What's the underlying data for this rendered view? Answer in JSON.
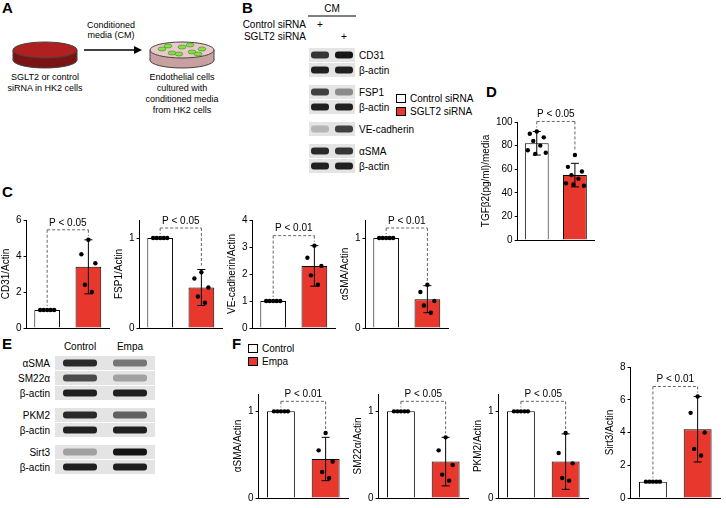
{
  "panel_labels": [
    "A",
    "B",
    "C",
    "D",
    "E",
    "F"
  ],
  "schematic": {
    "arrow_label": [
      "Conditioned",
      "media (CM)"
    ],
    "left_caption": [
      "SGLT2 or control",
      "siRNA in HK2 cells"
    ],
    "right_caption": [
      "Endothelial cells",
      "cultured with",
      "conditioned media",
      "from HK2 cells"
    ]
  },
  "blots": {
    "B": {
      "header": "CM",
      "conditions": [
        {
          "label": "Control siRNA",
          "marks": [
            "+",
            null
          ]
        },
        {
          "label": "SGLT2 siRNA",
          "marks": [
            null,
            "+"
          ]
        }
      ],
      "groups": [
        [
          {
            "label": "CD31",
            "signal": [
              0.8,
              0.95
            ]
          },
          {
            "label": "β-actin",
            "signal": [
              0.9,
              0.9
            ]
          }
        ],
        [
          {
            "label": "FSP1",
            "signal": [
              0.75,
              0.4
            ]
          },
          {
            "label": "β-actin",
            "signal": [
              0.9,
              0.9
            ]
          }
        ],
        [
          {
            "label": "VE-cadherin",
            "signal": [
              0.2,
              0.75
            ]
          }
        ],
        [
          {
            "label": "αSMA",
            "signal": [
              0.85,
              0.8
            ]
          },
          {
            "label": "β-actin",
            "signal": [
              0.9,
              0.9
            ]
          }
        ]
      ]
    },
    "E": {
      "lanes": [
        "Control",
        "Empa"
      ],
      "groups": [
        [
          {
            "label": "αSMA",
            "signal": [
              0.85,
              0.5
            ]
          },
          {
            "label": "SM22α",
            "signal": [
              0.7,
              0.3
            ]
          },
          {
            "label": "β-actin",
            "signal": [
              0.9,
              0.9
            ]
          }
        ],
        [
          {
            "label": "PKM2",
            "signal": [
              0.85,
              0.6
            ]
          },
          {
            "label": "β-actin",
            "signal": [
              0.9,
              0.9
            ]
          }
        ],
        [
          {
            "label": "Sirt3",
            "signal": [
              0.3,
              0.95
            ]
          },
          {
            "label": "β-actin",
            "signal": [
              0.9,
              0.9
            ]
          }
        ]
      ]
    }
  },
  "legends": [
    {
      "entries": [
        {
          "label": "Control siRNA",
          "color": "#ffffff"
        },
        {
          "label": "SGLT2 siRNA",
          "color": "#e8382d"
        }
      ]
    },
    {
      "entries": [
        {
          "label": "Control",
          "color": "#ffffff"
        },
        {
          "label": "Empa",
          "color": "#e8382d"
        }
      ]
    }
  ],
  "chart_data": [
    {
      "type": "bar",
      "y_label": "CD31/Actin",
      "categories": [
        null,
        null
      ],
      "values": [
        1,
        3.4
      ],
      "errors": [
        0,
        1.5
      ],
      "points": [
        [
          1,
          1,
          1,
          1,
          1
        ],
        [
          4.9,
          4.1,
          3.6,
          2.4,
          2.0
        ]
      ],
      "colors": [
        "#ffffff",
        "#e8382d"
      ],
      "ylim": [
        0,
        6
      ],
      "yticks": [
        0,
        2,
        4,
        6
      ],
      "annotations": [
        "P < 0.05"
      ],
      "tick_labels": "y"
    },
    {
      "type": "bar",
      "y_label": "FSP1/Actin",
      "categories": [
        null,
        null
      ],
      "values": [
        1,
        0.45
      ],
      "errors": [
        0,
        0.2
      ],
      "points": [
        [
          1,
          1,
          1,
          1,
          1
        ],
        [
          0.62,
          0.55,
          0.45,
          0.35,
          0.28
        ]
      ],
      "colors": [
        "#ffffff",
        "#e8382d"
      ],
      "ylim": [
        0,
        1.2
      ],
      "yticks": [
        0,
        1
      ],
      "annotations": [
        "P < 0.05"
      ],
      "tick_labels": "y"
    },
    {
      "type": "bar",
      "y_label": "VE-cadherin/Actin",
      "categories": [
        null,
        null
      ],
      "values": [
        1,
        2.3
      ],
      "errors": [
        0,
        0.75
      ],
      "points": [
        [
          1,
          1,
          1,
          1,
          1
        ],
        [
          3.05,
          2.6,
          2.3,
          1.95,
          1.6
        ]
      ],
      "colors": [
        "#ffffff",
        "#e8382d"
      ],
      "ylim": [
        0,
        4
      ],
      "yticks": [
        0,
        1,
        2,
        3,
        4
      ],
      "annotations": [
        "P < 0.01"
      ],
      "tick_labels": "y"
    },
    {
      "type": "bar",
      "y_label": "αSMA/Actin",
      "categories": [
        null,
        null
      ],
      "values": [
        1,
        0.32
      ],
      "errors": [
        0,
        0.15
      ],
      "points": [
        [
          1,
          1,
          1,
          1,
          1
        ],
        [
          0.48,
          0.4,
          0.3,
          0.25,
          0.17
        ]
      ],
      "colors": [
        "#ffffff",
        "#e8382d"
      ],
      "ylim": [
        0,
        1.2
      ],
      "yticks": [
        0,
        1
      ],
      "annotations": [
        "P < 0.01"
      ],
      "tick_labels": "y"
    },
    {
      "type": "bar",
      "y_label": "TGFβ2(pg/ml)/media",
      "categories": [
        null,
        null
      ],
      "values": [
        82,
        55
      ],
      "errors": [
        10,
        10
      ],
      "points": [
        [
          92,
          90,
          87,
          84,
          80,
          76,
          74,
          73
        ],
        [
          72,
          62,
          58,
          55,
          52,
          48,
          46,
          47
        ]
      ],
      "colors": [
        "#ffffff",
        "#e8382d"
      ],
      "ylim": [
        0,
        100
      ],
      "yticks": [
        0,
        20,
        40,
        60,
        80,
        100
      ],
      "annotations": [
        "P < 0.05"
      ],
      "tick_labels": "y"
    },
    {
      "type": "bar",
      "y_label": "αSMA/Actin",
      "categories": [
        null,
        null
      ],
      "values": [
        1,
        0.45
      ],
      "errors": [
        0,
        0.25
      ],
      "points": [
        [
          1,
          1,
          1,
          1,
          1
        ],
        [
          0.75,
          0.55,
          0.42,
          0.3,
          0.23
        ]
      ],
      "colors": [
        "#ffffff",
        "#e8382d"
      ],
      "ylim": [
        0,
        1.2
      ],
      "yticks": [
        0,
        1
      ],
      "annotations": [
        "P < 0.01"
      ],
      "tick_labels": "y"
    },
    {
      "type": "bar",
      "y_label": "SM22α/Actin",
      "categories": [
        null,
        null
      ],
      "values": [
        1,
        0.42
      ],
      "errors": [
        0,
        0.28
      ],
      "points": [
        [
          1,
          1,
          1,
          1,
          1
        ],
        [
          0.7,
          0.55,
          0.38,
          0.27,
          0.2
        ]
      ],
      "colors": [
        "#ffffff",
        "#e8382d"
      ],
      "ylim": [
        0,
        1.2
      ],
      "yticks": [
        0,
        1
      ],
      "annotations": [
        "P < 0.05"
      ],
      "tick_labels": "y"
    },
    {
      "type": "bar",
      "y_label": "PKM2/Actin",
      "categories": [
        null,
        null
      ],
      "values": [
        1,
        0.42
      ],
      "errors": [
        0,
        0.32
      ],
      "points": [
        [
          1,
          1,
          1,
          1,
          1
        ],
        [
          0.75,
          0.52,
          0.4,
          0.23,
          0.2
        ]
      ],
      "colors": [
        "#ffffff",
        "#e8382d"
      ],
      "ylim": [
        0,
        1.2
      ],
      "yticks": [
        0,
        1
      ],
      "annotations": [
        "P < 0.05"
      ],
      "tick_labels": "y"
    },
    {
      "type": "bar",
      "y_label": "Sirt3/Actin",
      "categories": [
        null,
        null
      ],
      "values": [
        1,
        4.2
      ],
      "errors": [
        0,
        2.0
      ],
      "points": [
        [
          1,
          1,
          1,
          1,
          1
        ],
        [
          6.2,
          5.2,
          4.0,
          3.0,
          2.6
        ]
      ],
      "colors": [
        "#ffffff",
        "#e8382d"
      ],
      "ylim": [
        0,
        8
      ],
      "yticks": [
        0,
        2,
        4,
        6,
        8
      ],
      "annotations": [
        "P < 0.01"
      ],
      "tick_labels": "y"
    }
  ]
}
